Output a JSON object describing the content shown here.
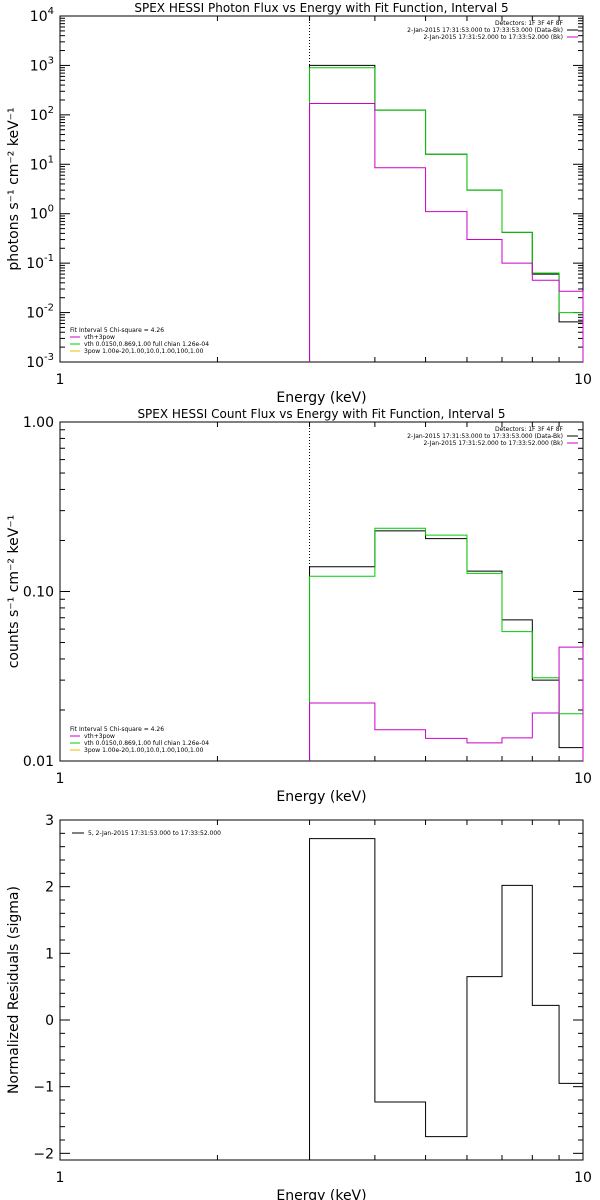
{
  "chart_data": [
    {
      "type": "line",
      "title": "SPEX HESSI Photon Flux vs Energy with Fit Function, Interval 5",
      "xlabel": "Energy (keV)",
      "ylabel": "photons s⁻¹ cm⁻² keV⁻¹",
      "xscale": "log",
      "yscale": "log",
      "xlim": [
        1,
        10
      ],
      "ylim": [
        0.001,
        10000
      ],
      "x_ticks": [
        {
          "v": 1,
          "label": "1"
        },
        {
          "v": 10,
          "label": "10"
        }
      ],
      "y_ticks": [
        {
          "v": 0.001,
          "base": "10",
          "exp": "-3"
        },
        {
          "v": 0.01,
          "base": "10",
          "exp": "-2"
        },
        {
          "v": 0.1,
          "base": "10",
          "exp": "-1"
        },
        {
          "v": 1,
          "base": "10",
          "exp": "0"
        },
        {
          "v": 10,
          "base": "10",
          "exp": "1"
        },
        {
          "v": 100,
          "base": "10",
          "exp": "2"
        },
        {
          "v": 1000,
          "base": "10",
          "exp": "3"
        },
        {
          "v": 10000,
          "base": "10",
          "exp": "4"
        }
      ],
      "vline_x": 3,
      "bin_edges": [
        3,
        4,
        5,
        6,
        7,
        8,
        9,
        10
      ],
      "series": [
        {
          "color": "#000000",
          "values": [
            1000,
            125,
            16,
            3.0,
            0.42,
            0.06,
            0.0065
          ]
        },
        {
          "color": "#00cc00",
          "values": [
            900,
            125,
            16,
            3.0,
            0.42,
            0.063,
            0.01
          ]
        },
        {
          "color": "#cc00cc",
          "values": [
            170,
            8.5,
            1.1,
            0.3,
            0.1,
            0.045,
            0.027
          ]
        }
      ],
      "legend_top": {
        "lines": [
          {
            "text": "Detectors: 1F 3F 4F 8F",
            "color": ""
          },
          {
            "text": "2-Jan-2015 17:31:53.000 to 17:33:53.000 (Data-Bk)",
            "color": "#000000"
          },
          {
            "text": "2-Jan-2015 17:31:52.000 to 17:33:52.000 (Bk)",
            "color": "#cc00cc"
          }
        ]
      },
      "legend_bottom": {
        "header": "Fit Interval 5   Chi-square = 4.26",
        "lines": [
          {
            "text": "vth+3pow",
            "color": "#cc00cc"
          },
          {
            "text": "vth 0.0150,0.869,1.00  full chian 1.26e-04",
            "color": "#00cc00"
          },
          {
            "text": "3pow 1.00e-20,1.00,10.0,1.00,100,1.00",
            "color": "#e0c000"
          }
        ]
      }
    },
    {
      "type": "line",
      "title": "SPEX HESSI Count Flux vs Energy with Fit Function, Interval 5",
      "xlabel": "Energy (keV)",
      "ylabel": "counts s⁻¹ cm⁻² keV⁻¹",
      "xscale": "log",
      "yscale": "log",
      "xlim": [
        1,
        10
      ],
      "ylim": [
        0.01,
        1.0
      ],
      "x_ticks": [
        {
          "v": 1,
          "label": "1"
        },
        {
          "v": 10,
          "label": "10"
        }
      ],
      "y_ticks": [
        {
          "v": 0.01,
          "label": "0.01"
        },
        {
          "v": 0.1,
          "label": "0.10"
        },
        {
          "v": 1.0,
          "label": "1.00"
        }
      ],
      "vline_x": 3,
      "bin_edges": [
        3,
        4,
        5,
        6,
        7,
        8,
        9,
        10
      ],
      "series": [
        {
          "color": "#000000",
          "values": [
            0.14,
            0.228,
            0.205,
            0.132,
            0.068,
            0.03,
            0.012
          ]
        },
        {
          "color": "#00cc00",
          "values": [
            0.123,
            0.236,
            0.215,
            0.128,
            0.058,
            0.031,
            0.019
          ]
        },
        {
          "color": "#cc00cc",
          "values": [
            0.022,
            0.0153,
            0.0136,
            0.0128,
            0.0137,
            0.0192,
            0.047
          ]
        }
      ],
      "legend_top": {
        "lines": [
          {
            "text": "Detectors: 1F 3F 4F 8F",
            "color": ""
          },
          {
            "text": "2-Jan-2015 17:31:53.000 to 17:33:53.000 (Data-Bk)",
            "color": "#000000"
          },
          {
            "text": "2-Jan-2015 17:31:52.000 to 17:33:52.000 (Bk)",
            "color": "#cc00cc"
          }
        ]
      },
      "legend_bottom": {
        "header": "Fit Interval 5   Chi-square = 4.26",
        "lines": [
          {
            "text": "vth+3pow",
            "color": "#cc00cc"
          },
          {
            "text": "vth 0.0150,0.869,1.00  full chian 1.26e-04",
            "color": "#00cc00"
          },
          {
            "text": "3pow 1.00e-20,1.00,10.0,1.00,100,1.00",
            "color": "#e0c000"
          }
        ]
      }
    },
    {
      "type": "line",
      "title": "",
      "xlabel": "Energy (keV)",
      "ylabel": "Normalized Residuals (sigma)",
      "xscale": "log",
      "yscale": "linear",
      "xlim": [
        1,
        10
      ],
      "ylim": [
        -2.1,
        3
      ],
      "x_ticks": [
        {
          "v": 1,
          "label": "1"
        },
        {
          "v": 10,
          "label": "10"
        }
      ],
      "y_ticks": [
        {
          "v": -2,
          "label": "−2"
        },
        {
          "v": -1,
          "label": "−1"
        },
        {
          "v": 0,
          "label": "0"
        },
        {
          "v": 1,
          "label": "1"
        },
        {
          "v": 2,
          "label": "2"
        },
        {
          "v": 3,
          "label": "3"
        }
      ],
      "bin_edges": [
        3,
        4,
        5,
        6,
        7,
        8,
        9,
        10
      ],
      "series": [
        {
          "color": "#000000",
          "values": [
            2.72,
            -1.23,
            -1.75,
            0.65,
            2.02,
            0.22,
            -0.95
          ]
        }
      ],
      "legend_top_left": {
        "text": "5,  2-Jan-2015 17:31:53.000 to 17:33:52.000",
        "color": "#000000"
      }
    }
  ]
}
